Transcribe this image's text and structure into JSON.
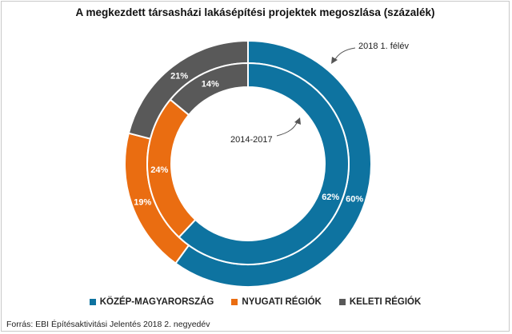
{
  "chart_data": {
    "type": "donut",
    "title": "A megkezdett társasházi lakásépítési projektek megoszlása (százalék)",
    "categories": [
      "KÖZÉP-MAGYARORSZÁG",
      "NYUGATI RÉGIÓK",
      "KELETI RÉGIÓK"
    ],
    "colors": [
      "#0e73a0",
      "#ea6d11",
      "#595959"
    ],
    "series": [
      {
        "name": "2018 1. félév",
        "ring": "outer",
        "values": [
          60,
          19,
          21
        ],
        "labels": [
          "60%",
          "19%",
          "21%"
        ]
      },
      {
        "name": "2014-2017",
        "ring": "inner",
        "values": [
          62,
          24,
          14
        ],
        "labels": [
          "62%",
          "24%",
          "14%"
        ]
      }
    ],
    "annotations": {
      "outer": "2018 1. félév",
      "inner": "2014-2017"
    },
    "legend_position": "bottom"
  },
  "source": "Forrás: EBI Építésaktivitási Jelentés 2018 2. negyedév"
}
